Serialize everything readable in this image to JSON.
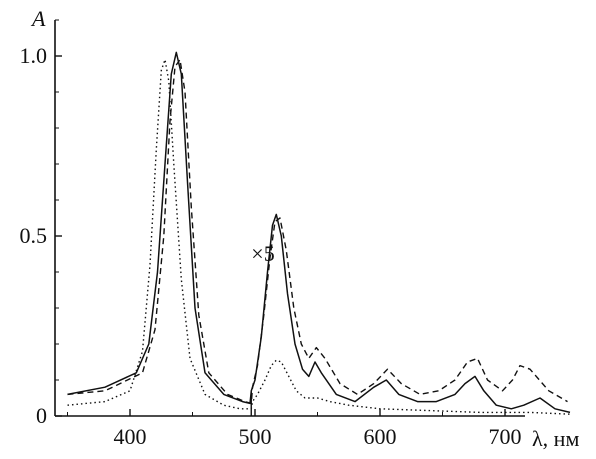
{
  "chart_data": {
    "type": "line",
    "ylabel": "A",
    "xlabel": "λ, нм",
    "xlim": [
      340,
      760
    ],
    "ylim": [
      0,
      1.1
    ],
    "x_ticks": [
      400,
      500,
      600,
      700
    ],
    "x_tick_labels": [
      "400",
      "500",
      "600",
      "700"
    ],
    "y_ticks": [
      0,
      0.5,
      1.0
    ],
    "y_tick_labels": [
      "0",
      "0.5",
      "1.0"
    ],
    "grid": false,
    "legend": "none",
    "annotations": [
      {
        "text": "×5",
        "x": 497,
        "y": 0.43
      }
    ],
    "series": [
      {
        "style": "solid",
        "color": "#111111",
        "points": [
          [
            350,
            0.06
          ],
          [
            380,
            0.08
          ],
          [
            405,
            0.12
          ],
          [
            415,
            0.2
          ],
          [
            422,
            0.4
          ],
          [
            428,
            0.7
          ],
          [
            433,
            0.95
          ],
          [
            437,
            1.01
          ],
          [
            441,
            0.95
          ],
          [
            446,
            0.65
          ],
          [
            452,
            0.3
          ],
          [
            460,
            0.12
          ],
          [
            475,
            0.06
          ],
          [
            490,
            0.04
          ],
          [
            496,
            0.035
          ],
          [
            497,
            0.07
          ],
          [
            500,
            0.1
          ],
          [
            505,
            0.22
          ],
          [
            510,
            0.4
          ],
          [
            514,
            0.53
          ],
          [
            517,
            0.56
          ],
          [
            521,
            0.5
          ],
          [
            526,
            0.34
          ],
          [
            532,
            0.2
          ],
          [
            538,
            0.13
          ],
          [
            543,
            0.11
          ],
          [
            548,
            0.15
          ],
          [
            553,
            0.12
          ],
          [
            565,
            0.06
          ],
          [
            580,
            0.04
          ],
          [
            595,
            0.08
          ],
          [
            605,
            0.1
          ],
          [
            615,
            0.06
          ],
          [
            630,
            0.04
          ],
          [
            645,
            0.04
          ],
          [
            660,
            0.06
          ],
          [
            668,
            0.09
          ],
          [
            676,
            0.11
          ],
          [
            683,
            0.07
          ],
          [
            693,
            0.03
          ],
          [
            705,
            0.02
          ],
          [
            715,
            0.03
          ],
          [
            728,
            0.05
          ],
          [
            740,
            0.02
          ],
          [
            752,
            0.01
          ]
        ]
      },
      {
        "style": "dashed",
        "color": "#111111",
        "points": [
          [
            350,
            0.06
          ],
          [
            380,
            0.07
          ],
          [
            410,
            0.12
          ],
          [
            420,
            0.24
          ],
          [
            427,
            0.5
          ],
          [
            432,
            0.82
          ],
          [
            436,
            0.97
          ],
          [
            440,
            0.99
          ],
          [
            444,
            0.9
          ],
          [
            449,
            0.58
          ],
          [
            455,
            0.28
          ],
          [
            463,
            0.12
          ],
          [
            478,
            0.06
          ],
          [
            492,
            0.04
          ],
          [
            497,
            0.035
          ],
          [
            498,
            0.08
          ],
          [
            502,
            0.14
          ],
          [
            507,
            0.28
          ],
          [
            512,
            0.44
          ],
          [
            516,
            0.54
          ],
          [
            520,
            0.55
          ],
          [
            525,
            0.46
          ],
          [
            531,
            0.3
          ],
          [
            537,
            0.2
          ],
          [
            543,
            0.16
          ],
          [
            549,
            0.19
          ],
          [
            556,
            0.16
          ],
          [
            568,
            0.09
          ],
          [
            582,
            0.06
          ],
          [
            595,
            0.09
          ],
          [
            606,
            0.13
          ],
          [
            617,
            0.09
          ],
          [
            632,
            0.06
          ],
          [
            647,
            0.07
          ],
          [
            660,
            0.1
          ],
          [
            670,
            0.15
          ],
          [
            678,
            0.16
          ],
          [
            686,
            0.1
          ],
          [
            698,
            0.07
          ],
          [
            706,
            0.1
          ],
          [
            712,
            0.14
          ],
          [
            720,
            0.13
          ],
          [
            735,
            0.07
          ],
          [
            750,
            0.04
          ]
        ]
      },
      {
        "style": "dotted",
        "color": "#111111",
        "points": [
          [
            350,
            0.03
          ],
          [
            380,
            0.04
          ],
          [
            400,
            0.07
          ],
          [
            410,
            0.18
          ],
          [
            416,
            0.42
          ],
          [
            421,
            0.74
          ],
          [
            425,
            0.96
          ],
          [
            428,
            0.99
          ],
          [
            431,
            0.93
          ],
          [
            435,
            0.7
          ],
          [
            441,
            0.38
          ],
          [
            448,
            0.16
          ],
          [
            460,
            0.06
          ],
          [
            475,
            0.03
          ],
          [
            488,
            0.02
          ],
          [
            497,
            0.02
          ],
          [
            498,
            0.04
          ],
          [
            502,
            0.06
          ],
          [
            508,
            0.1
          ],
          [
            513,
            0.14
          ],
          [
            517,
            0.155
          ],
          [
            521,
            0.15
          ],
          [
            527,
            0.11
          ],
          [
            533,
            0.07
          ],
          [
            540,
            0.05
          ],
          [
            550,
            0.05
          ],
          [
            560,
            0.04
          ],
          [
            575,
            0.03
          ],
          [
            600,
            0.02
          ],
          [
            640,
            0.015
          ],
          [
            680,
            0.01
          ],
          [
            720,
            0.01
          ],
          [
            752,
            0.005
          ]
        ]
      }
    ]
  }
}
